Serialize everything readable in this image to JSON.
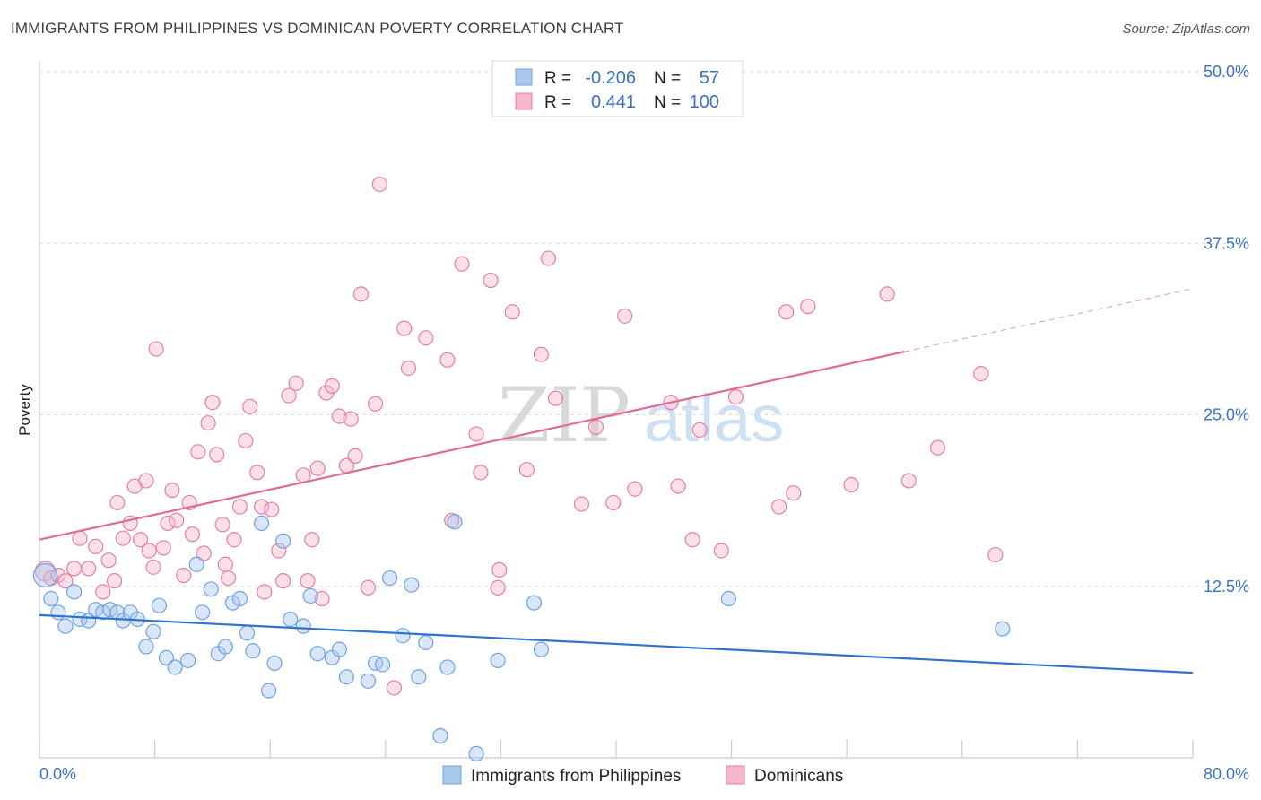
{
  "header": {
    "title": "IMMIGRANTS FROM PHILIPPINES VS DOMINICAN POVERTY CORRELATION CHART",
    "source": "Source: ZipAtlas.com"
  },
  "watermark": {
    "zip": "ZIP",
    "atlas": "atlas"
  },
  "legend_top": {
    "r_label": "R =",
    "n_label": "N =",
    "rows": [
      {
        "r": "-0.206",
        "n": "57",
        "color": "#a8c8ee"
      },
      {
        "r": "0.441",
        "n": "100",
        "color": "#f5b8cb"
      }
    ]
  },
  "legend_bottom": {
    "items": [
      {
        "label": "Immigrants from Philippines",
        "color": "#a8c8ee"
      },
      {
        "label": "Dominicans",
        "color": "#f5b8cb"
      }
    ]
  },
  "chart_data": {
    "type": "scatter",
    "title": "IMMIGRANTS FROM PHILIPPINES VS DOMINICAN POVERTY CORRELATION CHART",
    "xlabel": "",
    "ylabel": "Poverty",
    "xlim": [
      0,
      80
    ],
    "ylim": [
      0,
      50
    ],
    "x_tick_labels": [
      "0.0%",
      "80.0%"
    ],
    "y_ticks": [
      12.5,
      25.0,
      37.5,
      50.0
    ],
    "y_tick_labels": [
      "12.5%",
      "25.0%",
      "37.5%",
      "50.0%"
    ],
    "grid": true,
    "legend_position": "top-center",
    "series": [
      {
        "name": "Immigrants from Philippines",
        "color": "#6fa3e0",
        "fill": "#a8c8ee",
        "r": -0.206,
        "n": 57,
        "trend": {
          "x": [
            0,
            80
          ],
          "y": [
            10.4,
            6.2
          ]
        },
        "points": [
          [
            0.4,
            13.3
          ],
          [
            0.8,
            11.6
          ],
          [
            1.3,
            10.6
          ],
          [
            1.8,
            9.6
          ],
          [
            2.4,
            12.1
          ],
          [
            2.8,
            10.1
          ],
          [
            3.4,
            10.0
          ],
          [
            3.9,
            10.8
          ],
          [
            4.4,
            10.6
          ],
          [
            4.9,
            10.8
          ],
          [
            5.4,
            10.6
          ],
          [
            5.8,
            10.0
          ],
          [
            6.3,
            10.6
          ],
          [
            6.8,
            10.1
          ],
          [
            7.4,
            8.1
          ],
          [
            7.9,
            9.2
          ],
          [
            8.3,
            11.1
          ],
          [
            8.8,
            7.3
          ],
          [
            9.4,
            6.6
          ],
          [
            10.3,
            7.1
          ],
          [
            10.9,
            14.1
          ],
          [
            11.3,
            10.6
          ],
          [
            11.9,
            12.3
          ],
          [
            12.4,
            7.6
          ],
          [
            12.9,
            8.1
          ],
          [
            13.4,
            11.3
          ],
          [
            13.9,
            11.6
          ],
          [
            14.4,
            9.1
          ],
          [
            14.8,
            7.8
          ],
          [
            15.4,
            17.1
          ],
          [
            15.9,
            4.9
          ],
          [
            16.3,
            6.9
          ],
          [
            16.9,
            15.8
          ],
          [
            17.4,
            10.1
          ],
          [
            18.3,
            9.6
          ],
          [
            18.8,
            11.8
          ],
          [
            19.3,
            7.6
          ],
          [
            20.3,
            7.3
          ],
          [
            20.8,
            7.9
          ],
          [
            21.3,
            5.9
          ],
          [
            22.8,
            5.6
          ],
          [
            23.3,
            6.9
          ],
          [
            23.8,
            6.8
          ],
          [
            24.3,
            13.1
          ],
          [
            25.2,
            8.9
          ],
          [
            25.8,
            12.6
          ],
          [
            26.3,
            5.9
          ],
          [
            26.8,
            8.4
          ],
          [
            27.8,
            1.6
          ],
          [
            28.3,
            6.6
          ],
          [
            28.8,
            17.2
          ],
          [
            30.3,
            0.3
          ],
          [
            31.8,
            7.1
          ],
          [
            34.3,
            11.3
          ],
          [
            34.8,
            7.9
          ],
          [
            47.8,
            11.6
          ],
          [
            66.8,
            9.4
          ]
        ]
      },
      {
        "name": "Dominicans",
        "color": "#e57fa3",
        "fill": "#f5b8cb",
        "r": 0.441,
        "n": 100,
        "trend": {
          "x": [
            0,
            60
          ],
          "y": [
            15.9,
            29.6
          ]
        },
        "trend_dashed": {
          "x": [
            60,
            80
          ],
          "y": [
            29.6,
            34.2
          ]
        },
        "points": [
          [
            0.4,
            13.6
          ],
          [
            0.8,
            13.1
          ],
          [
            1.3,
            13.3
          ],
          [
            1.8,
            12.9
          ],
          [
            2.4,
            13.8
          ],
          [
            2.8,
            16.0
          ],
          [
            3.4,
            13.8
          ],
          [
            3.9,
            15.4
          ],
          [
            4.4,
            12.1
          ],
          [
            4.8,
            14.4
          ],
          [
            5.2,
            12.9
          ],
          [
            5.4,
            18.6
          ],
          [
            5.8,
            16.0
          ],
          [
            6.3,
            17.1
          ],
          [
            6.6,
            19.8
          ],
          [
            7.0,
            15.9
          ],
          [
            7.4,
            20.2
          ],
          [
            7.6,
            15.1
          ],
          [
            7.9,
            13.9
          ],
          [
            8.1,
            29.8
          ],
          [
            8.6,
            15.3
          ],
          [
            8.9,
            17.1
          ],
          [
            9.2,
            19.5
          ],
          [
            9.5,
            17.3
          ],
          [
            10.0,
            13.3
          ],
          [
            10.4,
            18.6
          ],
          [
            10.6,
            16.3
          ],
          [
            11.0,
            22.3
          ],
          [
            11.4,
            14.9
          ],
          [
            11.7,
            24.4
          ],
          [
            12.0,
            25.9
          ],
          [
            12.3,
            22.1
          ],
          [
            12.7,
            17.0
          ],
          [
            12.9,
            14.1
          ],
          [
            13.1,
            13.1
          ],
          [
            13.5,
            15.9
          ],
          [
            13.9,
            18.3
          ],
          [
            14.3,
            23.1
          ],
          [
            14.6,
            25.6
          ],
          [
            15.1,
            20.8
          ],
          [
            15.4,
            18.3
          ],
          [
            15.6,
            12.1
          ],
          [
            16.1,
            18.1
          ],
          [
            16.6,
            15.1
          ],
          [
            16.9,
            12.9
          ],
          [
            17.3,
            26.4
          ],
          [
            17.8,
            27.3
          ],
          [
            18.3,
            20.6
          ],
          [
            18.6,
            12.9
          ],
          [
            18.9,
            15.9
          ],
          [
            19.3,
            21.1
          ],
          [
            19.6,
            11.6
          ],
          [
            19.9,
            26.6
          ],
          [
            20.3,
            27.1
          ],
          [
            20.8,
            24.9
          ],
          [
            21.3,
            21.3
          ],
          [
            21.6,
            24.7
          ],
          [
            21.9,
            22.0
          ],
          [
            22.3,
            33.8
          ],
          [
            22.8,
            12.4
          ],
          [
            23.3,
            25.8
          ],
          [
            23.6,
            41.8
          ],
          [
            24.6,
            5.1
          ],
          [
            25.3,
            31.3
          ],
          [
            25.6,
            28.4
          ],
          [
            26.8,
            30.6
          ],
          [
            28.3,
            29.0
          ],
          [
            28.6,
            17.3
          ],
          [
            29.3,
            36.0
          ],
          [
            30.3,
            23.6
          ],
          [
            30.6,
            20.8
          ],
          [
            31.3,
            34.8
          ],
          [
            31.8,
            12.4
          ],
          [
            31.9,
            13.7
          ],
          [
            32.8,
            32.5
          ],
          [
            33.8,
            21.0
          ],
          [
            34.8,
            29.4
          ],
          [
            35.3,
            36.4
          ],
          [
            35.8,
            26.2
          ],
          [
            37.6,
            18.5
          ],
          [
            38.6,
            24.1
          ],
          [
            39.8,
            18.6
          ],
          [
            40.6,
            32.2
          ],
          [
            41.3,
            19.6
          ],
          [
            43.8,
            25.9
          ],
          [
            44.3,
            19.8
          ],
          [
            45.3,
            15.9
          ],
          [
            45.8,
            23.9
          ],
          [
            47.3,
            15.1
          ],
          [
            48.3,
            26.3
          ],
          [
            51.3,
            18.3
          ],
          [
            51.8,
            32.5
          ],
          [
            52.3,
            19.3
          ],
          [
            53.3,
            32.9
          ],
          [
            56.3,
            19.9
          ],
          [
            58.8,
            33.8
          ],
          [
            60.3,
            20.2
          ],
          [
            62.3,
            22.6
          ],
          [
            65.3,
            28.0
          ],
          [
            66.3,
            14.8
          ]
        ]
      }
    ]
  }
}
